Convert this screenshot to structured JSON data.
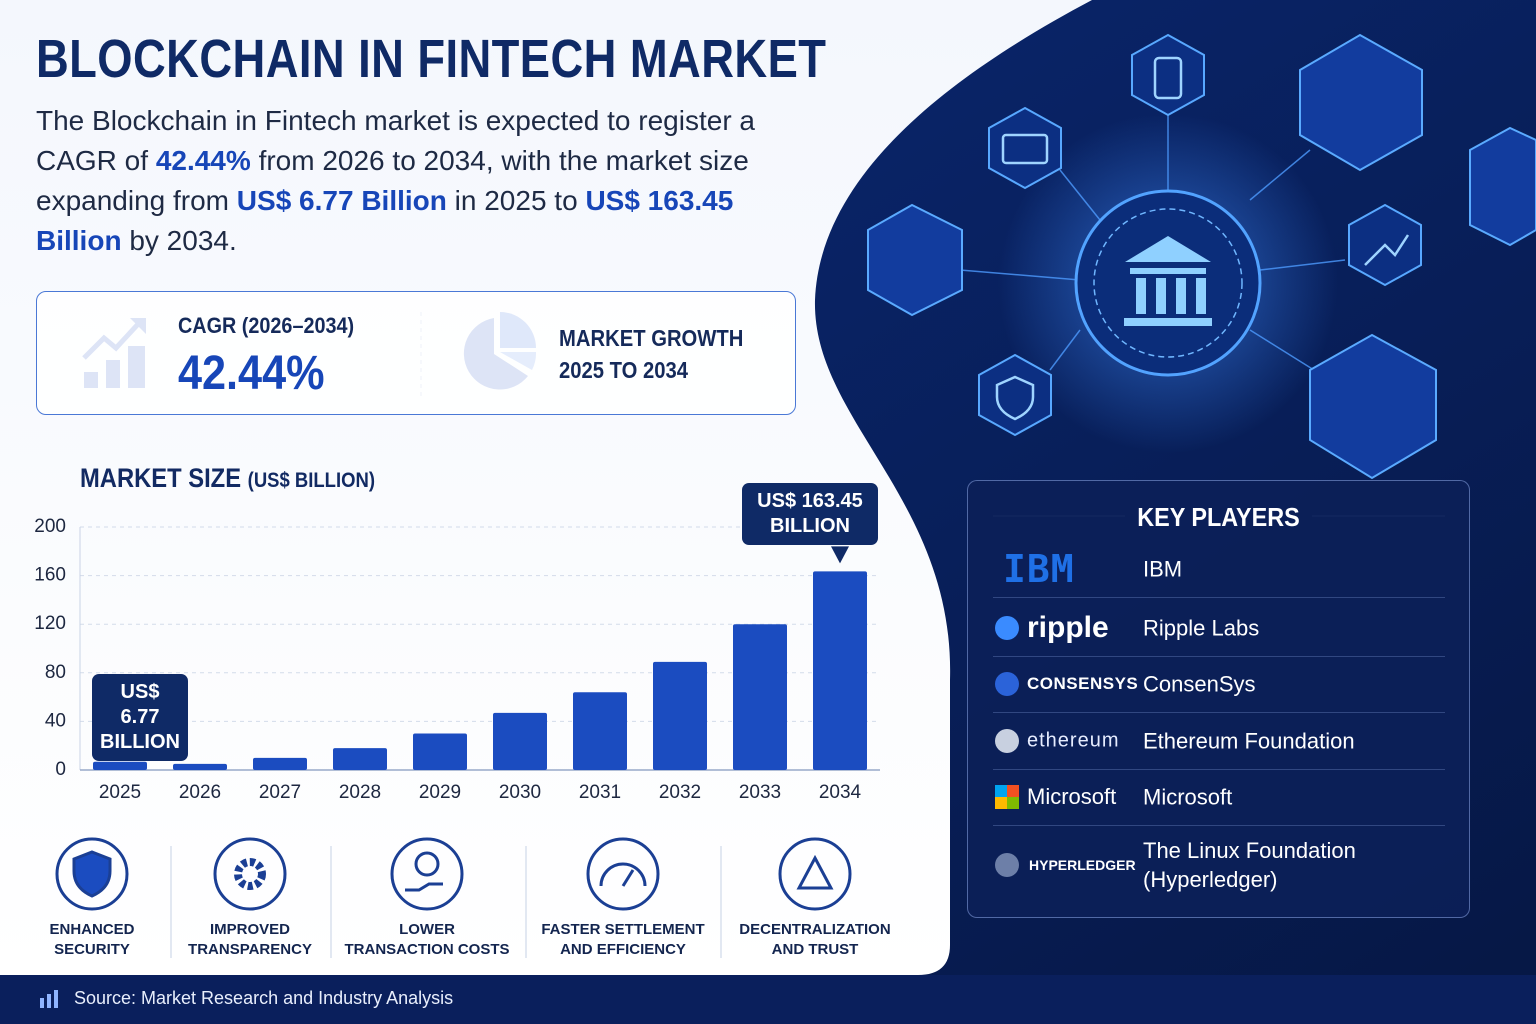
{
  "header": {
    "title": "BLOCKCHAIN IN FINTECH MARKET",
    "intro": [
      {
        "text": "The Blockchain in Fintech market is expected to register a CAGR of"
      },
      {
        "text": "42.44%",
        "highlight": true
      },
      {
        "text": "from 2026 to 2034, with the market size expanding from"
      },
      {
        "text": "US$ 6.77 Billion",
        "highlight": true
      },
      {
        "text": "in 2025 to"
      },
      {
        "text": "US$ 163.45 Billion",
        "highlight": true
      },
      {
        "text": "by 2034."
      }
    ]
  },
  "stats": {
    "cagr_label": "CAGR (2026–2034)",
    "cagr_value": "42.44%",
    "growth_label": [
      "MARKET GROWTH",
      "2025 TO 2034"
    ]
  },
  "chart_data": {
    "type": "bar",
    "title": "MARKET SIZE",
    "unit": "(US$ BILLION)",
    "categories": [
      "2025",
      "2026",
      "2027",
      "2028",
      "2029",
      "2030",
      "2031",
      "2032",
      "2033",
      "2034"
    ],
    "values": [
      6.77,
      5,
      10,
      18,
      30,
      47,
      64,
      89,
      120,
      163.45
    ],
    "value_labels": [
      "US$ 6.77 BILLION",
      null,
      null,
      null,
      null,
      null,
      null,
      null,
      null,
      "US$ 163.45 BILLION"
    ],
    "color": "#1b4cc0",
    "ylim": [
      0,
      200
    ],
    "yticks": [
      0,
      40,
      80,
      120,
      160,
      200
    ],
    "grid": true
  },
  "benefits": [
    [
      "ENHANCED",
      "SECURITY"
    ],
    [
      "IMPROVED",
      "TRANSPARENCY"
    ],
    [
      "LOWER",
      "TRANSACTION COSTS"
    ],
    [
      "FASTER SETTLEMENT",
      "AND EFFICIENCY"
    ],
    [
      "DECENTRALIZATION",
      "AND TRUST"
    ]
  ],
  "key_players": {
    "title": "KEY PLAYERS",
    "players": [
      {
        "logo": "IBM",
        "name": "IBM"
      },
      {
        "logo": "ripple",
        "name": "Ripple Labs"
      },
      {
        "logo": "CONSENSYS",
        "name": "ConsenSys"
      },
      {
        "logo": "ethereum",
        "name": "Ethereum Foundation"
      },
      {
        "logo": "Microsoft",
        "name": "Microsoft"
      },
      {
        "logo": "HYPERLEDGER",
        "name": "The Linux Foundation (Hyperledger)"
      }
    ]
  },
  "source": "Source: Market Research and Industry Analysis"
}
